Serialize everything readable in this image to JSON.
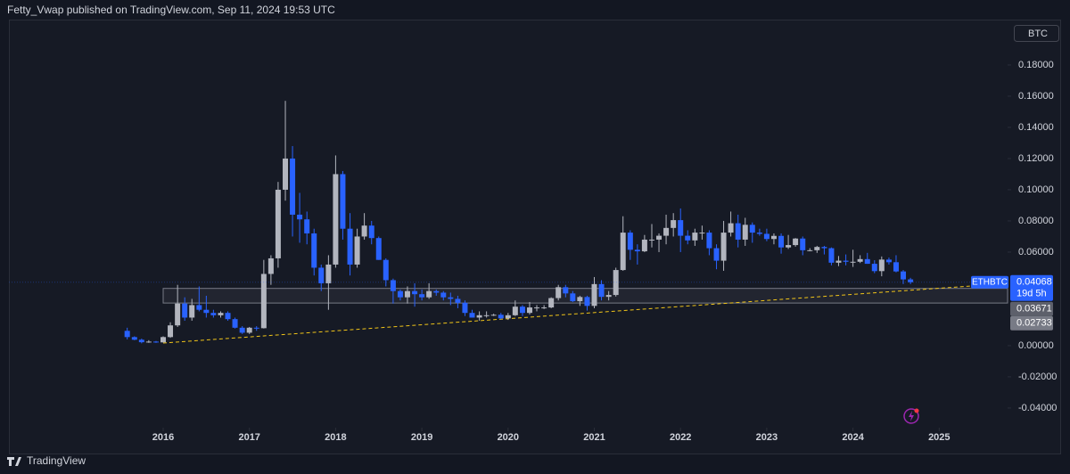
{
  "header": {
    "text": "Fetty_Vwap published on TradingView.com, Sep 11, 2024 19:53 UTC"
  },
  "footer": {
    "brand": "TradingView"
  },
  "chart_data": {
    "type": "candlestick",
    "symbol": "ETHBTC",
    "currency": "BTC",
    "x": [
      2015.583,
      2015.667,
      2015.75,
      2015.833,
      2015.917,
      2016.0,
      2016.083,
      2016.167,
      2016.25,
      2016.333,
      2016.417,
      2016.5,
      2016.583,
      2016.667,
      2016.75,
      2016.833,
      2016.917,
      2017.0,
      2017.083,
      2017.167,
      2017.25,
      2017.333,
      2017.417,
      2017.5,
      2017.583,
      2017.667,
      2017.75,
      2017.833,
      2017.917,
      2018.0,
      2018.083,
      2018.167,
      2018.25,
      2018.333,
      2018.417,
      2018.5,
      2018.583,
      2018.667,
      2018.75,
      2018.833,
      2018.917,
      2019.0,
      2019.083,
      2019.167,
      2019.25,
      2019.333,
      2019.417,
      2019.5,
      2019.583,
      2019.667,
      2019.75,
      2019.833,
      2019.917,
      2020.0,
      2020.083,
      2020.167,
      2020.25,
      2020.333,
      2020.417,
      2020.5,
      2020.583,
      2020.667,
      2020.75,
      2020.833,
      2020.917,
      2021.0,
      2021.083,
      2021.167,
      2021.25,
      2021.333,
      2021.417,
      2021.5,
      2021.583,
      2021.667,
      2021.75,
      2021.833,
      2021.917,
      2022.0,
      2022.083,
      2022.167,
      2022.25,
      2022.333,
      2022.417,
      2022.5,
      2022.583,
      2022.667,
      2022.75,
      2022.833,
      2022.917,
      2023.0,
      2023.083,
      2023.167,
      2023.25,
      2023.333,
      2023.417,
      2023.5,
      2023.583,
      2023.667,
      2023.75,
      2023.833,
      2023.917,
      2024.0,
      2024.083,
      2024.167,
      2024.25,
      2024.333,
      2024.417,
      2024.5,
      2024.583,
      2024.667
    ],
    "open": [
      0.0095,
      0.0055,
      0.0038,
      0.0022,
      0.0026,
      0.0021,
      0.0055,
      0.013,
      0.027,
      0.018,
      0.026,
      0.023,
      0.021,
      0.0195,
      0.021,
      0.017,
      0.0115,
      0.0083,
      0.0115,
      0.0112,
      0.046,
      0.056,
      0.1,
      0.12,
      0.084,
      0.081,
      0.072,
      0.05,
      0.04,
      0.052,
      0.11,
      0.075,
      0.052,
      0.07,
      0.077,
      0.069,
      0.055,
      0.042,
      0.035,
      0.031,
      0.035,
      0.033,
      0.031,
      0.035,
      0.034,
      0.031,
      0.03,
      0.0275,
      0.021,
      0.018,
      0.0195,
      0.0195,
      0.0198,
      0.0175,
      0.0195,
      0.025,
      0.021,
      0.0245,
      0.0245,
      0.0245,
      0.0305,
      0.0375,
      0.0335,
      0.0285,
      0.0312,
      0.0255,
      0.0395,
      0.0313,
      0.0325,
      0.0485,
      0.0725,
      0.0615,
      0.0605,
      0.068,
      0.068,
      0.0705,
      0.0755,
      0.0805,
      0.0705,
      0.0675,
      0.0725,
      0.0725,
      0.0625,
      0.0545,
      0.0725,
      0.0785,
      0.068,
      0.0775,
      0.0725,
      0.0717,
      0.0684,
      0.0704,
      0.063,
      0.0645,
      0.0687,
      0.0612,
      0.0612,
      0.0633,
      0.0625,
      0.0532,
      0.0545,
      0.0538,
      0.0538,
      0.0555,
      0.0525,
      0.0478,
      0.0552,
      0.0535,
      0.0476,
      0.0425
    ],
    "high": [
      0.0115,
      0.006,
      0.0045,
      0.0035,
      0.003,
      0.006,
      0.015,
      0.039,
      0.031,
      0.03,
      0.038,
      0.032,
      0.023,
      0.022,
      0.022,
      0.018,
      0.0125,
      0.012,
      0.0125,
      0.055,
      0.058,
      0.105,
      0.157,
      0.128,
      0.098,
      0.086,
      0.075,
      0.052,
      0.058,
      0.122,
      0.112,
      0.085,
      0.075,
      0.085,
      0.08,
      0.07,
      0.056,
      0.043,
      0.036,
      0.038,
      0.04,
      0.036,
      0.04,
      0.036,
      0.035,
      0.034,
      0.032,
      0.029,
      0.023,
      0.022,
      0.022,
      0.0205,
      0.021,
      0.021,
      0.029,
      0.026,
      0.028,
      0.026,
      0.026,
      0.031,
      0.039,
      0.039,
      0.035,
      0.032,
      0.032,
      0.044,
      0.042,
      0.035,
      0.05,
      0.083,
      0.074,
      0.065,
      0.071,
      0.078,
      0.072,
      0.084,
      0.085,
      0.088,
      0.074,
      0.075,
      0.077,
      0.074,
      0.065,
      0.08,
      0.086,
      0.084,
      0.082,
      0.079,
      0.075,
      0.075,
      0.072,
      0.072,
      0.071,
      0.069,
      0.07,
      0.0625,
      0.064,
      0.064,
      0.063,
      0.0575,
      0.0585,
      0.0615,
      0.058,
      0.0595,
      0.0548,
      0.0572,
      0.0565,
      0.058,
      0.0485,
      0.0435
    ],
    "low": [
      0.004,
      0.0035,
      0.0015,
      0.0018,
      0.0018,
      0.002,
      0.005,
      0.012,
      0.016,
      0.016,
      0.022,
      0.018,
      0.018,
      0.018,
      0.016,
      0.011,
      0.0075,
      0.0075,
      0.0095,
      0.011,
      0.039,
      0.05,
      0.093,
      0.07,
      0.066,
      0.065,
      0.045,
      0.035,
      0.023,
      0.05,
      0.068,
      0.045,
      0.05,
      0.068,
      0.065,
      0.055,
      0.038,
      0.027,
      0.029,
      0.027,
      0.025,
      0.029,
      0.03,
      0.032,
      0.029,
      0.026,
      0.024,
      0.019,
      0.018,
      0.016,
      0.018,
      0.019,
      0.017,
      0.0165,
      0.019,
      0.019,
      0.02,
      0.022,
      0.0235,
      0.024,
      0.029,
      0.031,
      0.028,
      0.0255,
      0.0225,
      0.024,
      0.029,
      0.029,
      0.0315,
      0.048,
      0.055,
      0.052,
      0.06,
      0.063,
      0.06,
      0.065,
      0.07,
      0.06,
      0.065,
      0.064,
      0.068,
      0.058,
      0.049,
      0.048,
      0.07,
      0.063,
      0.064,
      0.066,
      0.0705,
      0.067,
      0.065,
      0.059,
      0.062,
      0.0635,
      0.058,
      0.0605,
      0.0595,
      0.0585,
      0.0515,
      0.051,
      0.0515,
      0.0505,
      0.053,
      0.0525,
      0.0465,
      0.0445,
      0.052,
      0.047,
      0.0395,
      0.0395
    ],
    "close": [
      0.0055,
      0.0038,
      0.0022,
      0.0026,
      0.0021,
      0.0055,
      0.013,
      0.027,
      0.018,
      0.026,
      0.023,
      0.021,
      0.0195,
      0.021,
      0.017,
      0.0115,
      0.0083,
      0.0115,
      0.0112,
      0.046,
      0.056,
      0.1,
      0.12,
      0.084,
      0.081,
      0.072,
      0.05,
      0.04,
      0.052,
      0.11,
      0.075,
      0.052,
      0.07,
      0.077,
      0.069,
      0.055,
      0.042,
      0.035,
      0.031,
      0.035,
      0.033,
      0.031,
      0.035,
      0.034,
      0.031,
      0.03,
      0.0275,
      0.021,
      0.018,
      0.0195,
      0.0195,
      0.0198,
      0.0175,
      0.0195,
      0.025,
      0.021,
      0.0245,
      0.0245,
      0.0245,
      0.0305,
      0.0375,
      0.0335,
      0.0285,
      0.0312,
      0.0255,
      0.0395,
      0.0313,
      0.0325,
      0.0485,
      0.0725,
      0.0615,
      0.0605,
      0.068,
      0.068,
      0.0705,
      0.0755,
      0.0805,
      0.0705,
      0.0675,
      0.0725,
      0.0725,
      0.0625,
      0.0545,
      0.0725,
      0.0785,
      0.068,
      0.0775,
      0.0725,
      0.0717,
      0.0684,
      0.0704,
      0.063,
      0.0645,
      0.0687,
      0.0612,
      0.0612,
      0.0633,
      0.0625,
      0.0532,
      0.0545,
      0.0538,
      0.0538,
      0.0555,
      0.0525,
      0.0478,
      0.0552,
      0.0535,
      0.0476,
      0.0425,
      0.04068
    ],
    "up_color": "#b2b5be",
    "down_color": "#2962ff",
    "xlim": [
      2014.211,
      2025.793
    ],
    "xticks": [
      2016,
      2017,
      2018,
      2019,
      2020,
      2021,
      2022,
      2023,
      2024,
      2025
    ],
    "ylim": [
      -0.0526,
      0.2074
    ],
    "yticks": [
      {
        "value": -0.04,
        "label": "-0.04000"
      },
      {
        "value": -0.02,
        "label": "-0.02000"
      },
      {
        "value": 0,
        "label": "0.00000"
      },
      {
        "value": 0.06,
        "label": "0.06000"
      },
      {
        "value": 0.08,
        "label": "0.08000"
      },
      {
        "value": 0.1,
        "label": "0.10000"
      },
      {
        "value": 0.12,
        "label": "0.12000"
      },
      {
        "value": 0.14,
        "label": "0.14000"
      },
      {
        "value": 0.16,
        "label": "0.16000"
      },
      {
        "value": 0.18,
        "label": "0.18000"
      }
    ],
    "last_price": 0.04068,
    "countdown": "19d 5h",
    "zone": {
      "top": 0.03671,
      "bottom": 0.02733,
      "x_start": 2016.0,
      "color": "#787b86"
    },
    "trendline": {
      "x": [
        2016.0,
        2025.38
      ],
      "y": [
        0.0017,
        0.0383
      ],
      "color": "#f0c419"
    }
  }
}
